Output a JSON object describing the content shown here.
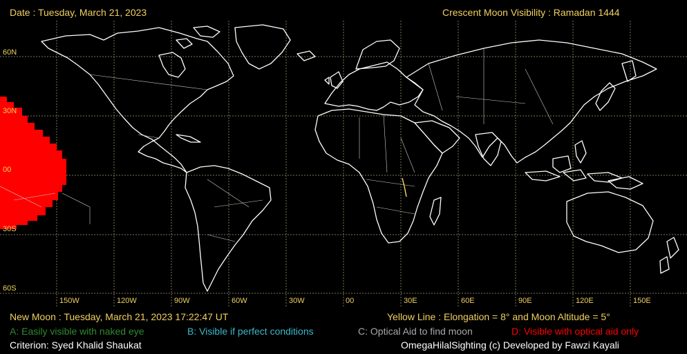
{
  "header": {
    "date": "Date : Tuesday, March 21, 2023",
    "title": "Crescent Moon Visibility : Ramadan  1444"
  },
  "lat_labels": [
    "60N",
    "30N",
    "00",
    "30S",
    "60S"
  ],
  "lon_labels": [
    "150W",
    "120W",
    "90W",
    "60W",
    "30W",
    "00",
    "30E",
    "60E",
    "90E",
    "120E",
    "150E"
  ],
  "footer": {
    "new_moon": "New Moon : Tuesday, March 21, 2023  17:22:47  UT",
    "yellow_line": "Yellow Line : Elongation = 8° and Moon Altitude = 5°",
    "legend_a": "A: Easily visible with naked eye",
    "legend_b": "B: Visible if perfect conditions",
    "legend_c": "C: Optical Aid to find moon",
    "legend_d": "D: Visible with optical aid only",
    "criterion": "Criterion: Syed Khalid Shaukat",
    "credit": "OmegaHilalSighting  (c)  Developed by Fawzi Kayali"
  },
  "colors": {
    "zone_a": "#2e8b2e",
    "zone_b": "#3cb8c8",
    "zone_c": "#a8a8a8",
    "zone_d": "#ff0000",
    "label": "#f0d060",
    "coast": "#ffffff",
    "grid": "#7a7a5a"
  }
}
